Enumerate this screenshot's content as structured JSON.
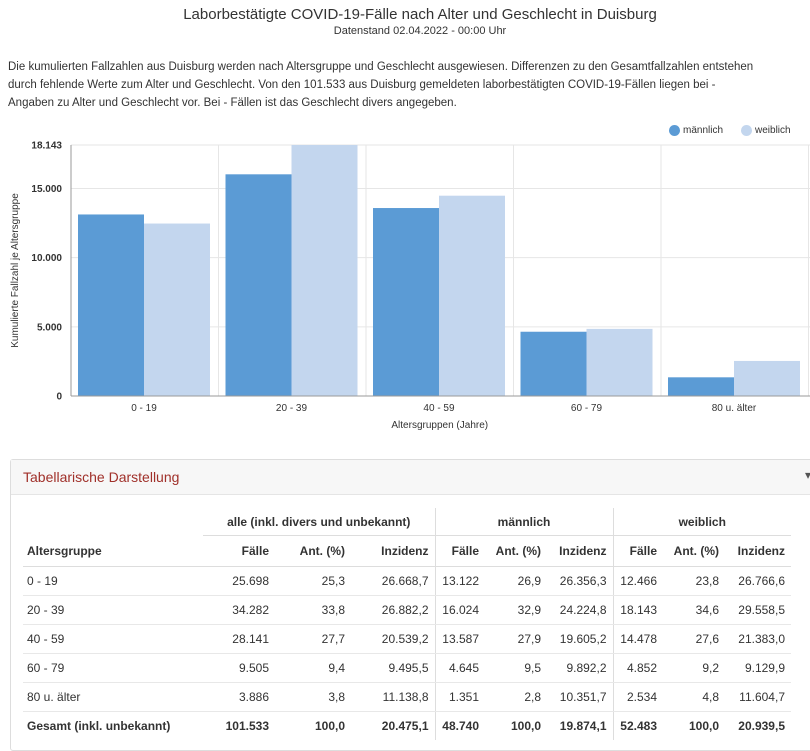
{
  "title": "Laborbestätigte COVID-19-Fälle nach Alter und Geschlecht in Duisburg",
  "subtitle": "Datenstand 02.04.2022 - 00:00 Uhr",
  "description": [
    "Die kumulierten Fallzahlen aus Duisburg werden nach Altersgruppe und Geschlecht ausgewiesen. Differenzen zu den Gesamtfallzahlen entstehen",
    "durch fehlende Werte zum Alter und Geschlecht. Von den 101.533 aus Duisburg gemeldeten laborbestätigten COVID-19-Fällen liegen bei -",
    "Angaben zu Alter und Geschlecht vor. Bei - Fällen ist das Geschlecht divers angegeben."
  ],
  "chart_data": {
    "type": "bar",
    "categories": [
      "0 - 19",
      "20 - 39",
      "40 - 59",
      "60 - 79",
      "80 u. älter"
    ],
    "series": [
      {
        "name": "männlich",
        "values": [
          13122,
          16024,
          13587,
          4645,
          1351
        ],
        "color": "#5b9bd5"
      },
      {
        "name": "weiblich",
        "values": [
          12466,
          18143,
          14478,
          4852,
          2534
        ],
        "color": "#c3d6ee"
      }
    ],
    "xlabel": "Altersgruppen (Jahre)",
    "ylabel": "Kumulierte Fallzahl je Altersgruppe",
    "ylim": [
      0,
      18143
    ],
    "yticks": [
      {
        "value": 0,
        "label": "0"
      },
      {
        "value": 5000,
        "label": "5.000"
      },
      {
        "value": 10000,
        "label": "10.000"
      },
      {
        "value": 15000,
        "label": "15.000"
      },
      {
        "value": 18143,
        "label": "18.143"
      }
    ],
    "grid": true,
    "legend": "top-right"
  },
  "table": {
    "panel_title": "Tabellarische Darstellung",
    "panel_tool": "▾",
    "groups": [
      "alle (inkl. divers und unbekannt)",
      "männlich",
      "weiblich"
    ],
    "columns": [
      "Altersgruppe",
      "Fälle",
      "Ant. (%)",
      "Inzidenz",
      "Fälle",
      "Ant. (%)",
      "Inzidenz",
      "Fälle",
      "Ant. (%)",
      "Inzidenz"
    ],
    "rows": [
      [
        "0 - 19",
        "25.698",
        "25,3",
        "26.668,7",
        "13.122",
        "26,9",
        "26.356,3",
        "12.466",
        "23,8",
        "26.766,6"
      ],
      [
        "20 - 39",
        "34.282",
        "33,8",
        "26.882,2",
        "16.024",
        "32,9",
        "24.224,8",
        "18.143",
        "34,6",
        "29.558,5"
      ],
      [
        "40 - 59",
        "28.141",
        "27,7",
        "20.539,2",
        "13.587",
        "27,9",
        "19.605,2",
        "14.478",
        "27,6",
        "21.383,0"
      ],
      [
        "60 - 79",
        "9.505",
        "9,4",
        "9.495,5",
        "4.645",
        "9,5",
        "9.892,2",
        "4.852",
        "9,2",
        "9.129,9"
      ],
      [
        "80 u. älter",
        "3.886",
        "3,8",
        "11.138,8",
        "1.351",
        "2,8",
        "10.351,7",
        "2.534",
        "4,8",
        "11.604,7"
      ]
    ],
    "total": [
      "Gesamt (inkl. unbekannt)",
      "101.533",
      "100,0",
      "20.475,1",
      "48.740",
      "100,0",
      "19.874,1",
      "52.483",
      "100,0",
      "20.939,5"
    ]
  }
}
